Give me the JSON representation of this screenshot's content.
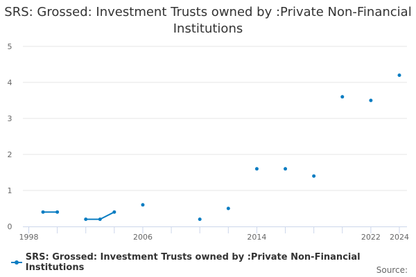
{
  "chart_data": {
    "type": "line",
    "title": "SRS: Grossed: Investment Trusts owned by :Private Non-Financial Institutions",
    "xlabel": "",
    "ylabel": "",
    "xlim": [
      1998,
      2024
    ],
    "ylim": [
      0,
      5
    ],
    "x_ticks": [
      1998,
      2006,
      2014,
      2022,
      2024
    ],
    "y_ticks": [
      0,
      1,
      2,
      3,
      4,
      5
    ],
    "grid": true,
    "legend_position": "bottom-left",
    "series": [
      {
        "name": "SRS: Grossed: Investment Trusts owned by :Private Non-Financial Institutions",
        "color": "#0a7dc2",
        "x": [
          1999,
          2000,
          2002,
          2003,
          2004,
          2006,
          2010,
          2012,
          2014,
          2016,
          2018,
          2020,
          2022,
          2024
        ],
        "values": [
          0.4,
          0.4,
          0.2,
          0.2,
          0.4,
          0.6,
          0.2,
          0.5,
          1.6,
          1.6,
          1.4,
          3.6,
          3.5,
          4.2
        ]
      }
    ],
    "source_label": "Source:"
  }
}
